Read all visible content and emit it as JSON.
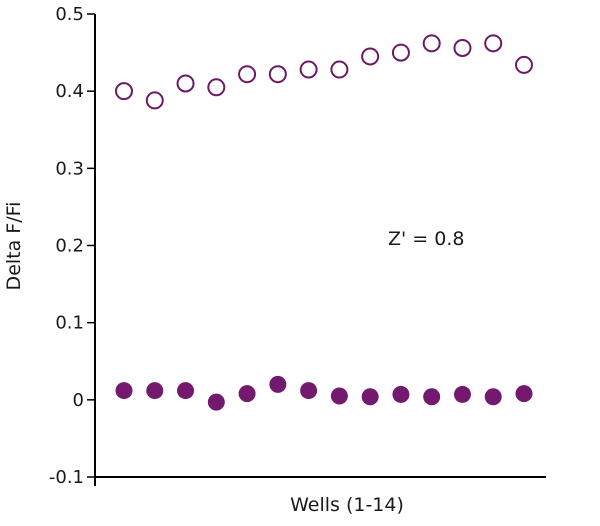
{
  "chart_data": {
    "type": "scatter",
    "xlabel": "Wells (1-14)",
    "ylabel": "Delta F/Fi",
    "ylim": [
      -0.1,
      0.5
    ],
    "yticks": [
      -0.1,
      0,
      0.1,
      0.2,
      0.3,
      0.4,
      0.5
    ],
    "ytick_labels": [
      "-0.1",
      "0",
      "0.1",
      "0.2",
      "0.3",
      "0.4",
      "0.5"
    ],
    "x": [
      1,
      2,
      3,
      4,
      5,
      6,
      7,
      8,
      9,
      10,
      11,
      12,
      13,
      14
    ],
    "xlim": [
      0.5,
      14.5
    ],
    "grid": false,
    "annotation": "Z' = 0.8",
    "series": [
      {
        "marker": "open-circle",
        "color": "#6b1a66",
        "values": [
          0.4,
          0.388,
          0.41,
          0.405,
          0.422,
          0.422,
          0.428,
          0.428,
          0.445,
          0.45,
          0.462,
          0.456,
          0.462,
          0.434
        ]
      },
      {
        "marker": "filled-circle",
        "color": "#731a6e",
        "values": [
          0.012,
          0.012,
          0.012,
          -0.003,
          0.008,
          0.02,
          0.012,
          0.005,
          0.004,
          0.007,
          0.004,
          0.007,
          0.004,
          0.008
        ]
      }
    ]
  }
}
